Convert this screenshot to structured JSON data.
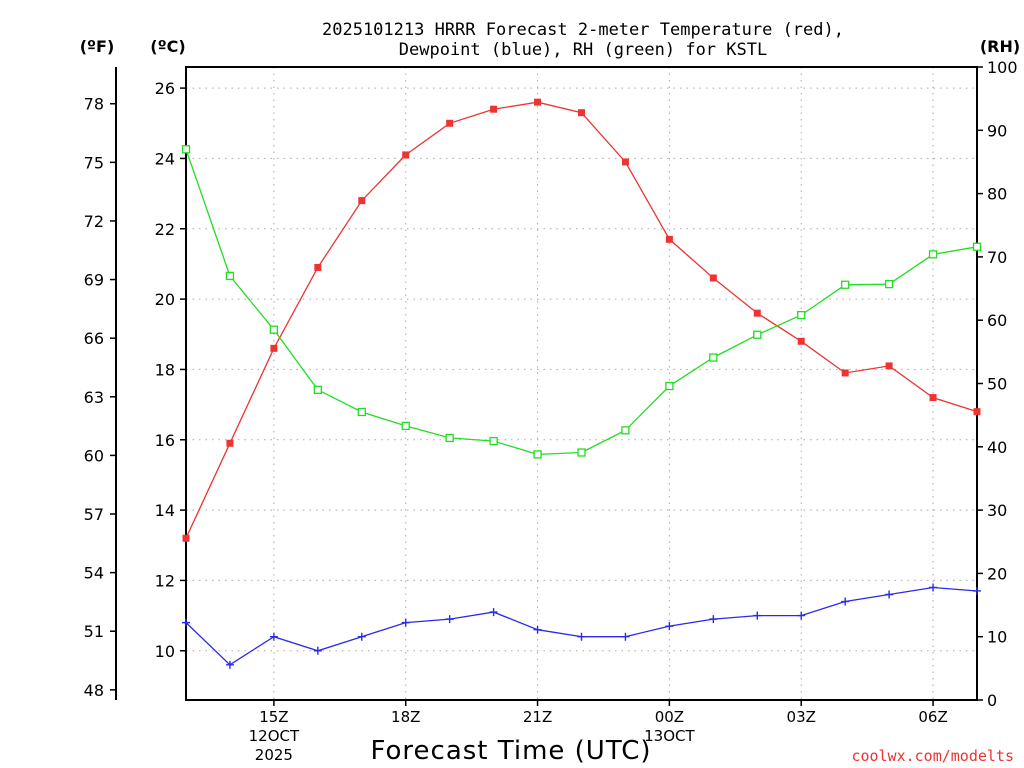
{
  "chart_data": {
    "type": "line",
    "title_line1": "2025101213 HRRR Forecast 2-meter Temperature (red),",
    "title_line2": "Dewpoint (blue), RH (green) for KSTL",
    "xlabel": "Forecast Time (UTC)",
    "credit": "coolwx.com/modelts",
    "units": {
      "fahrenheit": "(ºF)",
      "celsius": "(ºC)",
      "rh": "(RH)"
    },
    "x_hours": [
      13,
      14,
      15,
      16,
      17,
      18,
      19,
      20,
      21,
      22,
      23,
      24,
      25,
      26,
      27,
      28,
      29,
      30,
      31
    ],
    "xlim": [
      13,
      31
    ],
    "x_ticks": [
      {
        "hour": 15,
        "label": "15Z",
        "sub1": "12OCT",
        "sub2": "2025"
      },
      {
        "hour": 18,
        "label": "18Z",
        "sub1": "",
        "sub2": ""
      },
      {
        "hour": 21,
        "label": "21Z",
        "sub1": "",
        "sub2": ""
      },
      {
        "hour": 24,
        "label": "00Z",
        "sub1": "13OCT",
        "sub2": ""
      },
      {
        "hour": 27,
        "label": "03Z",
        "sub1": "",
        "sub2": ""
      },
      {
        "hour": 30,
        "label": "06Z",
        "sub1": "",
        "sub2": ""
      }
    ],
    "celsius_axis": {
      "ylim": [
        8.6,
        26.6
      ],
      "ticks": [
        10,
        12,
        14,
        16,
        18,
        20,
        22,
        24,
        26
      ]
    },
    "fahrenheit_axis": {
      "ticks": [
        48,
        51,
        54,
        57,
        60,
        63,
        66,
        69,
        72,
        75,
        78
      ]
    },
    "rh_axis": {
      "ylim": [
        0,
        100
      ],
      "ticks": [
        0,
        10,
        20,
        30,
        40,
        50,
        60,
        70,
        80,
        90,
        100
      ]
    },
    "series": [
      {
        "name": "Temperature",
        "axis": "celsius",
        "color": "#ee3333",
        "marker": "filled-square",
        "values": [
          13.2,
          15.9,
          18.6,
          20.9,
          22.8,
          24.1,
          25.0,
          25.4,
          25.6,
          25.3,
          23.9,
          21.7,
          20.6,
          19.6,
          18.8,
          17.9,
          18.1,
          17.2,
          16.8
        ]
      },
      {
        "name": "Dewpoint",
        "axis": "celsius",
        "color": "#2a2aee",
        "marker": "plus",
        "values": [
          10.8,
          9.6,
          10.4,
          10.0,
          10.4,
          10.8,
          10.9,
          11.1,
          10.6,
          10.4,
          10.4,
          10.7,
          10.9,
          11.0,
          11.0,
          11.4,
          11.6,
          11.8,
          11.7
        ]
      },
      {
        "name": "RH",
        "axis": "rh",
        "color": "#22dd22",
        "marker": "open-square",
        "values": [
          87,
          67,
          58.5,
          49,
          45.5,
          43.3,
          41.4,
          40.9,
          38.8,
          39.1,
          42.6,
          49.6,
          54.1,
          57.7,
          60.8,
          65.6,
          65.7,
          70.4,
          71.6
        ]
      }
    ]
  }
}
